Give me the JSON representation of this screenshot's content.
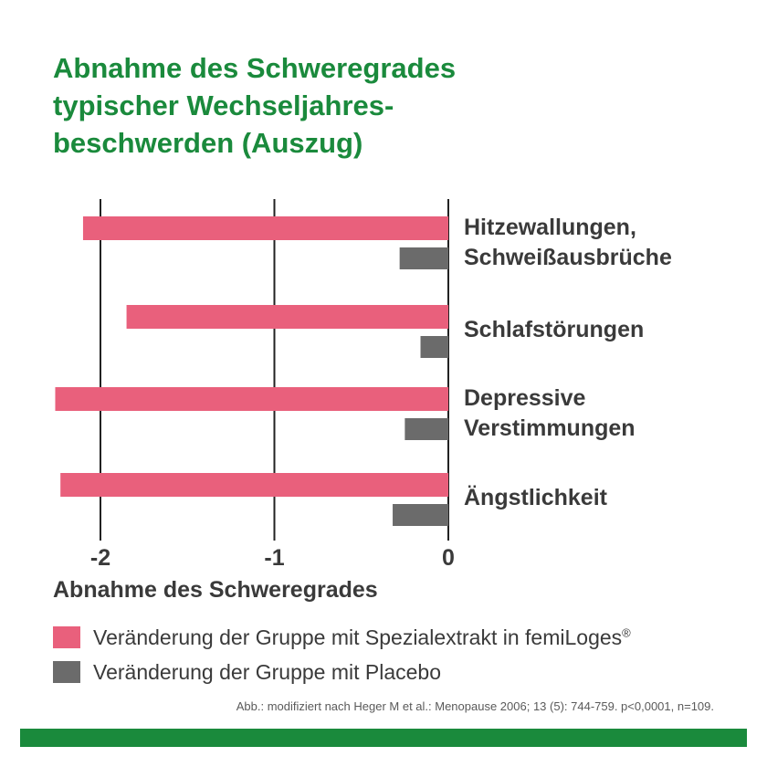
{
  "title_lines": [
    "Abnahme des Schweregrades",
    "typischer Wechseljahres-",
    "beschwerden (Auszug)"
  ],
  "chart_data": {
    "type": "bar",
    "orientation": "horizontal",
    "categories": [
      [
        "Hitzewallungen,",
        "Schweißausbrüche"
      ],
      [
        "Schlafstörungen"
      ],
      [
        "Depressive",
        "Verstimmungen"
      ],
      [
        "Ängstlichkeit"
      ]
    ],
    "series": [
      {
        "name": "Veränderung der Gruppe mit Spezialextrakt in femiLoges",
        "color": "#e9607c",
        "values": [
          -2.1,
          -1.85,
          -2.26,
          -2.23
        ]
      },
      {
        "name": "Veränderung der Gruppe mit Placebo",
        "color": "#6b6b6b",
        "values": [
          -0.28,
          -0.16,
          -0.25,
          -0.32
        ]
      }
    ],
    "xlim": [
      -2.4,
      0
    ],
    "xticks": [
      -2,
      -1,
      0
    ],
    "xtick_labels": [
      "-2",
      "-1",
      "0"
    ],
    "xlabel": "Abnahme des Schweregrades",
    "grid": true
  },
  "legend": {
    "item1_text": "Veränderung der Gruppe mit Spezialextrakt in femiLoges",
    "item1_sup": "®",
    "item2_text": "Veränderung der Gruppe mit Placebo"
  },
  "source_note": "Abb.: modifiziert nach Heger M et al.: Menopause 2006; 13 (5): 744-759. p<0,0001, n=109.",
  "colors": {
    "title": "#1a8a3c",
    "footer": "#1a8a3c",
    "grid": "#222222"
  }
}
